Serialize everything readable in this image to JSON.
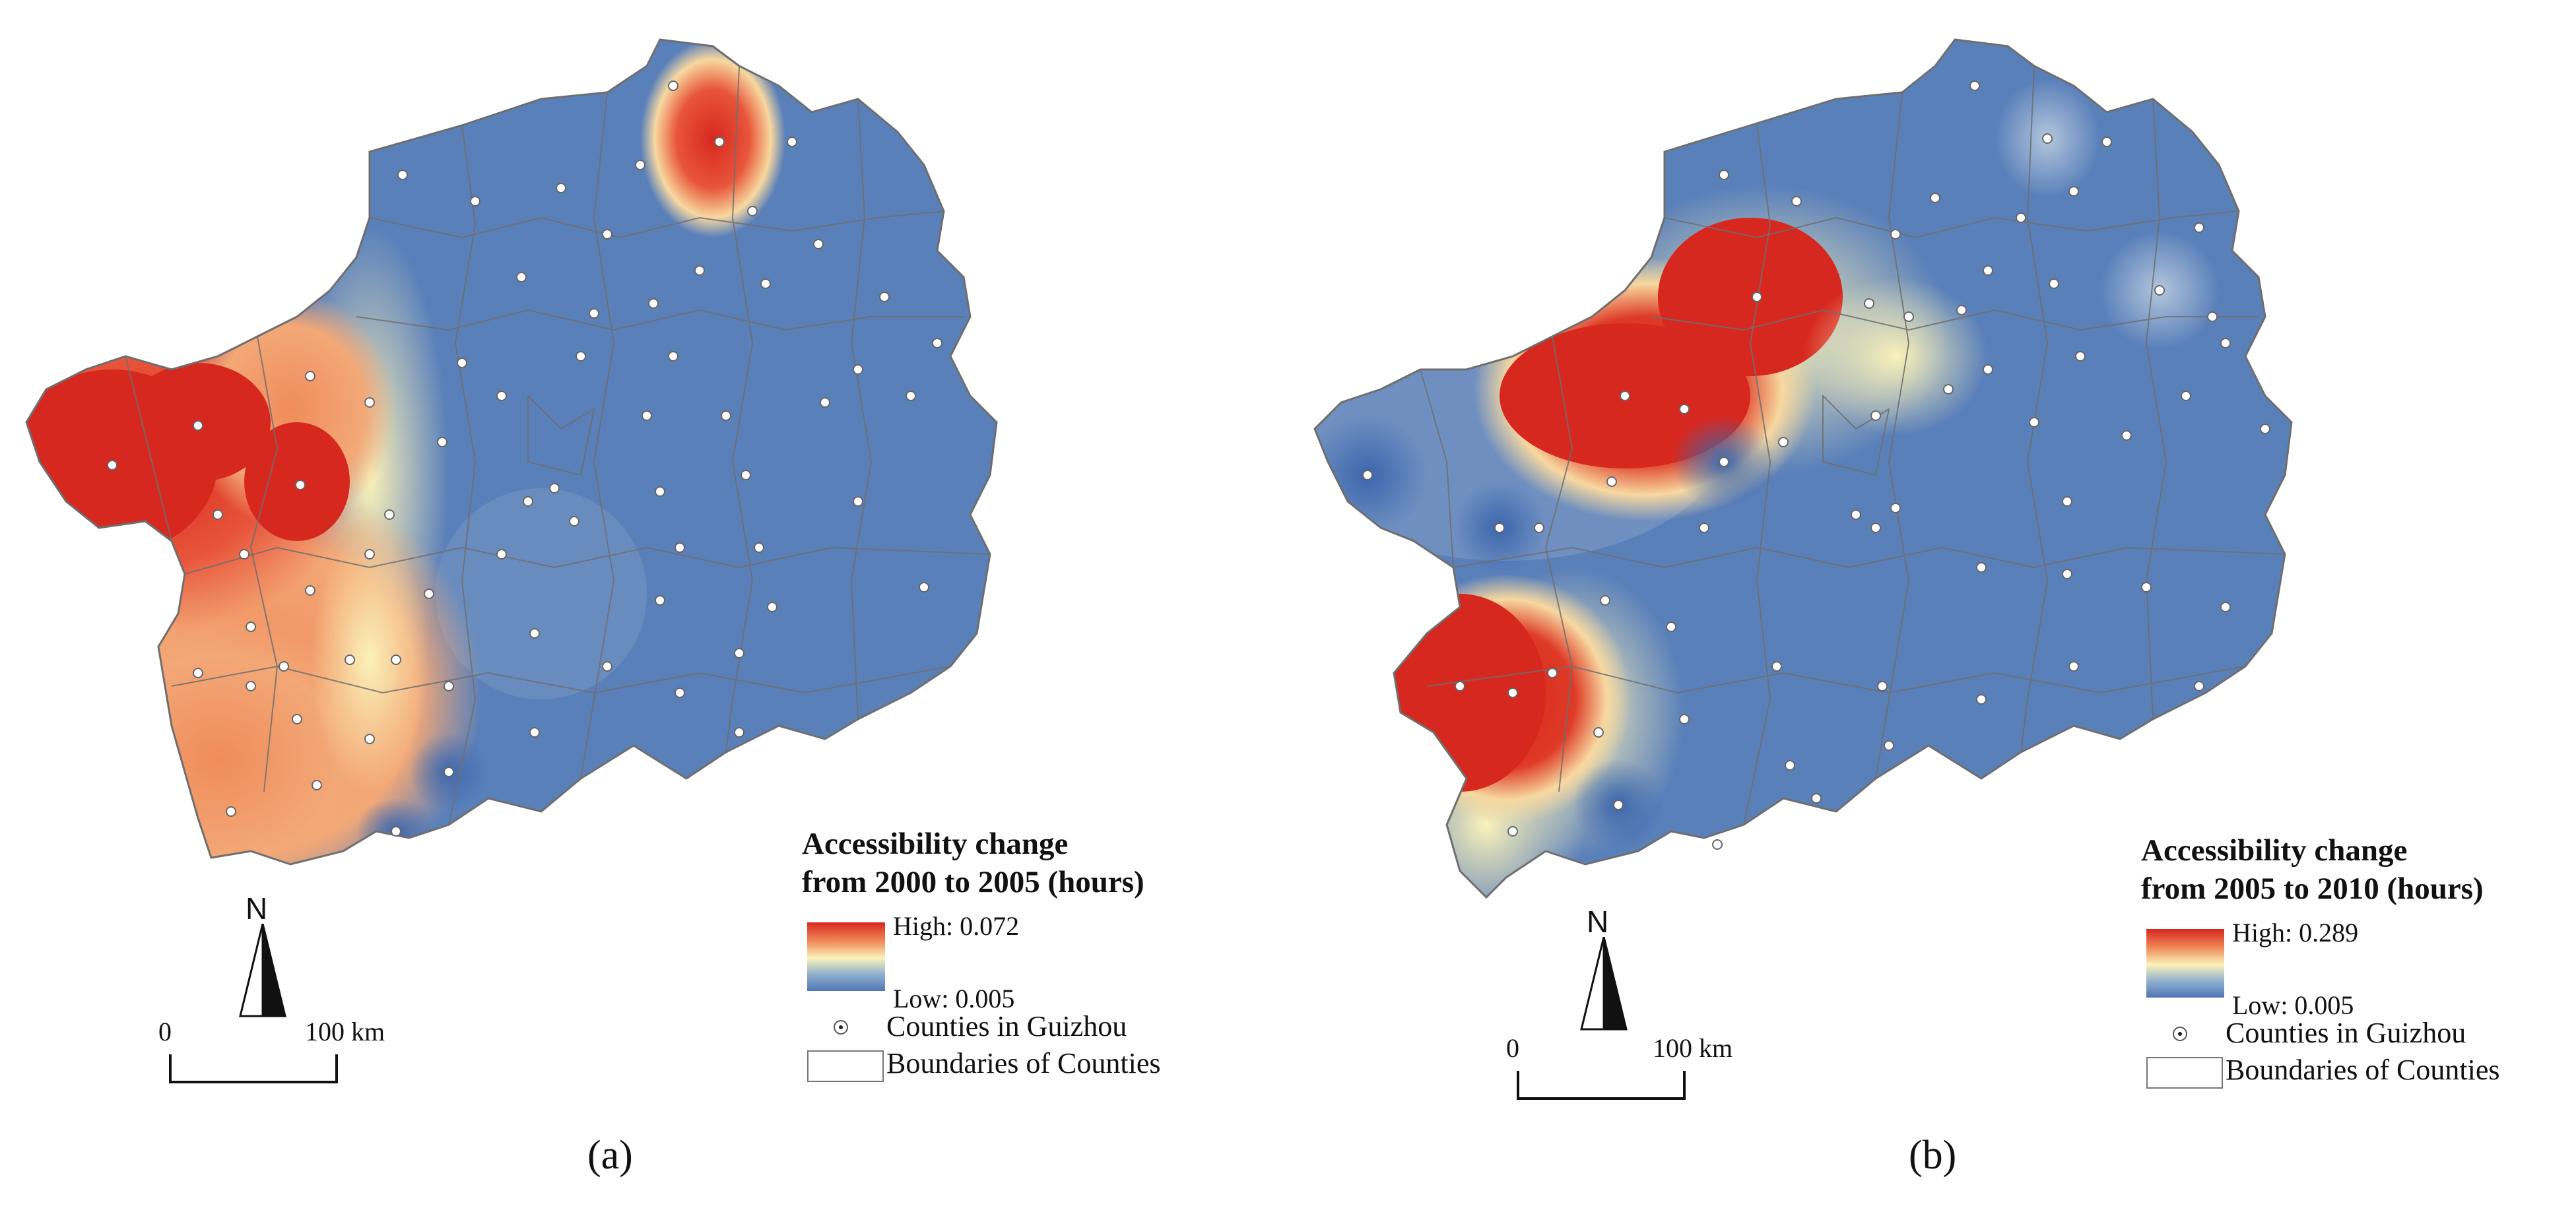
{
  "figure": {
    "panels": [
      {
        "id": "a",
        "panel_label": "(a)",
        "legend": {
          "title_line1": "Accessibility change",
          "title_line2": "from 2000 to 2005 (hours)",
          "high_label": "High: 0.072",
          "low_label": "Low: 0.005",
          "counties_label": "Counties in Guizhou",
          "boundaries_label": "Boundaries of Counties"
        },
        "north_label": "N",
        "scale": {
          "start_label": "0",
          "end_label": "100 km"
        }
      },
      {
        "id": "b",
        "panel_label": "(b)",
        "legend": {
          "title_line1": "Accessibility change",
          "title_line2": "from 2005 to 2010 (hours)",
          "high_label": "High: 0.289",
          "low_label": "Low: 0.005",
          "counties_label": "Counties in Guizhou",
          "boundaries_label": "Boundaries of Counties"
        },
        "north_label": "N",
        "scale": {
          "start_label": "0",
          "end_label": "100 km"
        }
      }
    ]
  },
  "colors": {
    "high": "#d7281f",
    "mid_orange": "#f08c5b",
    "mid_light": "#fbf2b9",
    "low": "#4f77b4",
    "boundary": "#6e6e6e"
  }
}
